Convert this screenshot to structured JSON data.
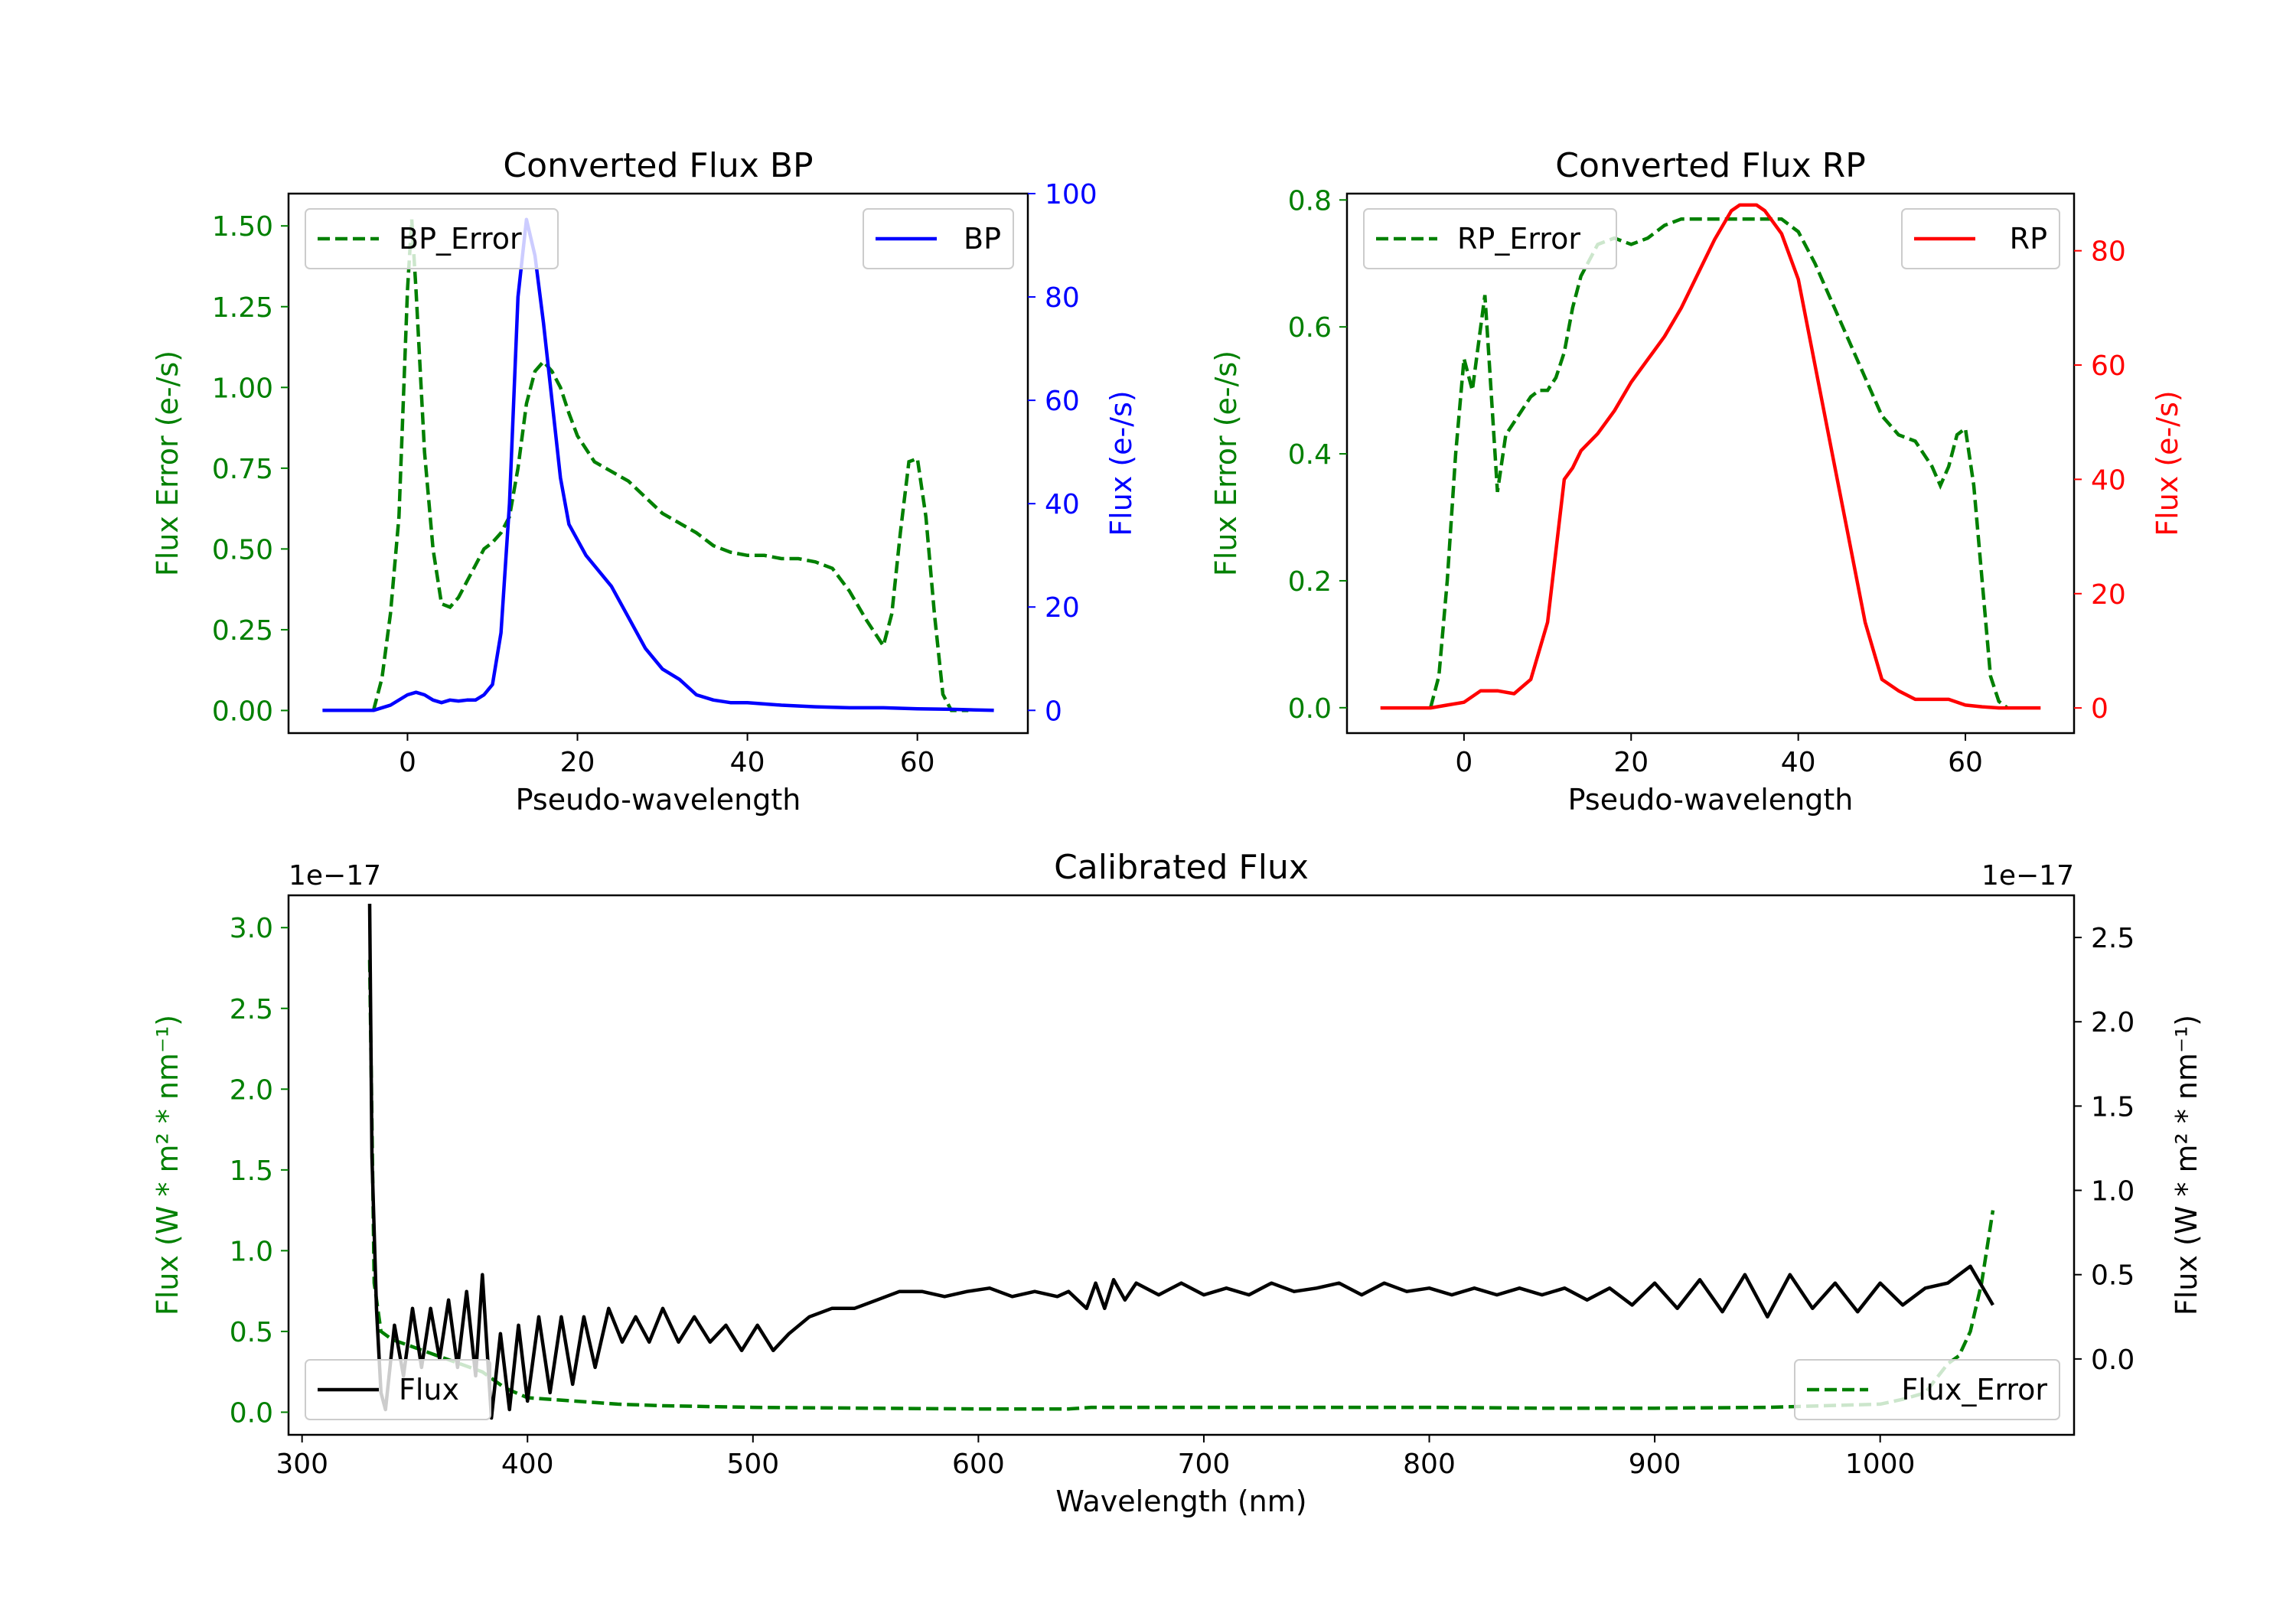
{
  "colors": {
    "green": "#008000",
    "blue": "#0000ff",
    "red": "#ff0000",
    "black": "#000000"
  },
  "chart_data": [
    {
      "type": "line",
      "title": "Converted Flux BP",
      "xlabel": "Pseudo-wavelength",
      "ylabel_left": "Flux Error (e-/s)",
      "ylabel_right": "Flux (e-/s)",
      "xlim": [
        -14,
        73
      ],
      "ylim_left": [
        -0.07,
        1.6
      ],
      "ylim_right": [
        -4.4,
        100
      ],
      "xticks": [
        0,
        20,
        40,
        60
      ],
      "xtick_labels": [
        "0",
        "20",
        "40",
        "60"
      ],
      "yticks_left": [
        0,
        0.25,
        0.5,
        0.75,
        1.0,
        1.25,
        1.5
      ],
      "ytick_labels_left": [
        "0.00",
        "0.25",
        "0.50",
        "0.75",
        "1.00",
        "1.25",
        "1.50"
      ],
      "yticks_right": [
        0,
        20,
        40,
        60,
        80,
        100
      ],
      "ytick_labels_right": [
        "0",
        "20",
        "40",
        "60",
        "80",
        "100"
      ],
      "legend_left": "BP_Error",
      "legend_right": "BP",
      "series_error": {
        "name": "BP_Error",
        "x": [
          -4,
          -3,
          -2,
          -1,
          0,
          0.5,
          1,
          2,
          3,
          4,
          5,
          6,
          7,
          8,
          9,
          10,
          11,
          12,
          13,
          14,
          15,
          16,
          17,
          18,
          19,
          20,
          22,
          24,
          26,
          28,
          30,
          32,
          34,
          36,
          38,
          40,
          42,
          44,
          46,
          48,
          50,
          52,
          54,
          56,
          57,
          58,
          59,
          60,
          61,
          62,
          63,
          64,
          65,
          66
        ],
        "y": [
          0.0,
          0.1,
          0.3,
          0.6,
          1.3,
          1.52,
          1.3,
          0.8,
          0.5,
          0.33,
          0.32,
          0.35,
          0.4,
          0.45,
          0.5,
          0.52,
          0.55,
          0.6,
          0.75,
          0.95,
          1.05,
          1.08,
          1.05,
          1.0,
          0.92,
          0.85,
          0.77,
          0.74,
          0.71,
          0.66,
          0.61,
          0.58,
          0.55,
          0.51,
          0.49,
          0.48,
          0.48,
          0.47,
          0.47,
          0.46,
          0.44,
          0.37,
          0.28,
          0.2,
          0.3,
          0.55,
          0.77,
          0.78,
          0.6,
          0.3,
          0.05,
          0.0,
          0.0,
          0.0
        ]
      },
      "series_flux": {
        "name": "BP",
        "x": [
          -10,
          -6,
          -4,
          -2,
          0,
          1,
          2,
          3,
          4,
          5,
          6,
          7,
          8,
          9,
          10,
          11,
          12,
          13,
          14,
          15,
          16,
          17,
          18,
          19,
          20,
          21,
          22,
          24,
          26,
          28,
          30,
          32,
          34,
          36,
          38,
          40,
          44,
          48,
          52,
          56,
          60,
          64,
          69
        ],
        "y": [
          0,
          0,
          0,
          1,
          3,
          3.5,
          3,
          2,
          1.5,
          2,
          1.8,
          2,
          2,
          3,
          5,
          15,
          40,
          80,
          95,
          88,
          75,
          60,
          45,
          36,
          33,
          30,
          28,
          24,
          18,
          12,
          8,
          6,
          3,
          2,
          1.5,
          1.5,
          1,
          0.7,
          0.5,
          0.5,
          0.3,
          0.2,
          0
        ]
      }
    },
    {
      "type": "line",
      "title": "Converted Flux RP",
      "xlabel": "Pseudo-wavelength",
      "ylabel_left": "Flux Error (e-/s)",
      "ylabel_right": "Flux (e-/s)",
      "xlim": [
        -14,
        73
      ],
      "ylim_left": [
        -0.04,
        0.81
      ],
      "ylim_right": [
        -4.4,
        90
      ],
      "xticks": [
        0,
        20,
        40,
        60
      ],
      "xtick_labels": [
        "0",
        "20",
        "40",
        "60"
      ],
      "yticks_left": [
        0,
        0.2,
        0.4,
        0.6,
        0.8
      ],
      "ytick_labels_left": [
        "0.0",
        "0.2",
        "0.4",
        "0.6",
        "0.8"
      ],
      "yticks_right": [
        0,
        20,
        40,
        60,
        80
      ],
      "ytick_labels_right": [
        "0",
        "20",
        "40",
        "60",
        "80"
      ],
      "legend_left": "RP_Error",
      "legend_right": "RP",
      "series_error": {
        "name": "RP_Error",
        "x": [
          -4,
          -3,
          -2,
          -1,
          0,
          1,
          2,
          2.5,
          3,
          4,
          5,
          6,
          7,
          8,
          9,
          10,
          11,
          12,
          13,
          14,
          16,
          18,
          20,
          22,
          24,
          26,
          28,
          30,
          32,
          34,
          36,
          38,
          40,
          42,
          44,
          46,
          48,
          50,
          52,
          54,
          56,
          57,
          58,
          59,
          60,
          61,
          62,
          63,
          64,
          65
        ],
        "y": [
          0.0,
          0.05,
          0.2,
          0.4,
          0.55,
          0.5,
          0.6,
          0.65,
          0.55,
          0.34,
          0.43,
          0.45,
          0.47,
          0.49,
          0.5,
          0.5,
          0.52,
          0.56,
          0.63,
          0.68,
          0.73,
          0.74,
          0.73,
          0.74,
          0.76,
          0.77,
          0.77,
          0.77,
          0.77,
          0.77,
          0.77,
          0.77,
          0.75,
          0.7,
          0.64,
          0.58,
          0.52,
          0.46,
          0.43,
          0.42,
          0.38,
          0.35,
          0.38,
          0.43,
          0.44,
          0.35,
          0.2,
          0.05,
          0.01,
          0.0
        ]
      },
      "series_flux": {
        "name": "RP",
        "x": [
          -10,
          -4,
          -2,
          0,
          2,
          4,
          6,
          8,
          10,
          12,
          13,
          14,
          16,
          18,
          20,
          22,
          24,
          26,
          28,
          30,
          32,
          33,
          34,
          35,
          36,
          38,
          40,
          42,
          44,
          46,
          48,
          50,
          52,
          54,
          56,
          58,
          60,
          62,
          64,
          69
        ],
        "y": [
          0,
          0,
          0.5,
          1,
          3,
          3,
          2.5,
          5,
          15,
          40,
          42,
          45,
          48,
          52,
          57,
          61,
          65,
          70,
          76,
          82,
          87,
          88,
          88,
          88,
          87,
          83,
          75,
          60,
          45,
          30,
          15,
          5,
          3,
          1.5,
          1.5,
          1.5,
          0.5,
          0.2,
          0,
          0
        ]
      }
    },
    {
      "type": "line",
      "title": "Calibrated Flux",
      "xlabel": "Wavelength (nm)",
      "ylabel_left": "Flux (W * m² * nm⁻¹)",
      "ylabel_right": "Flux (W * m² * nm⁻¹)",
      "offset_left": "1e−17",
      "offset_right": "1e−17",
      "xlim": [
        294,
        1086
      ],
      "ylim_left": [
        -0.14,
        3.2
      ],
      "ylim_right": [
        -0.45,
        2.75
      ],
      "xticks": [
        300,
        400,
        500,
        600,
        700,
        800,
        900,
        1000
      ],
      "xtick_labels": [
        "300",
        "400",
        "500",
        "600",
        "700",
        "800",
        "900",
        "1000"
      ],
      "yticks_left": [
        0,
        0.5,
        1.0,
        1.5,
        2.0,
        2.5,
        3.0
      ],
      "ytick_labels_left": [
        "0.0",
        "0.5",
        "1.0",
        "1.5",
        "2.0",
        "2.5",
        "3.0"
      ],
      "yticks_right": [
        0,
        0.5,
        1.0,
        1.5,
        2.0,
        2.5
      ],
      "ytick_labels_right": [
        "0.0",
        "0.5",
        "1.0",
        "1.5",
        "2.0",
        "2.5"
      ],
      "legend_left": "Flux",
      "legend_right": "Flux_Error",
      "series_error": {
        "name": "Flux_Error",
        "x": [
          330,
          332,
          335,
          340,
          350,
          360,
          370,
          380,
          390,
          400,
          420,
          440,
          460,
          500,
          550,
          600,
          640,
          650,
          700,
          750,
          800,
          850,
          900,
          950,
          1000,
          1010,
          1020,
          1030,
          1035,
          1040,
          1045,
          1050
        ],
        "y": [
          2.8,
          0.8,
          0.5,
          0.45,
          0.4,
          0.35,
          0.3,
          0.25,
          0.15,
          0.09,
          0.07,
          0.05,
          0.04,
          0.03,
          0.025,
          0.02,
          0.02,
          0.03,
          0.03,
          0.03,
          0.03,
          0.025,
          0.025,
          0.03,
          0.05,
          0.08,
          0.12,
          0.3,
          0.35,
          0.5,
          0.8,
          1.25
        ]
      },
      "series_flux": {
        "name": "Flux",
        "x": [
          330,
          331,
          333,
          335,
          337,
          341,
          345,
          349,
          353,
          357,
          361,
          365,
          369,
          373,
          377,
          380,
          384,
          388,
          392,
          396,
          400,
          405,
          410,
          415,
          420,
          425,
          430,
          436,
          442,
          448,
          454,
          460,
          467,
          474,
          481,
          488,
          495,
          502,
          509,
          516,
          525,
          535,
          545,
          555,
          565,
          575,
          585,
          595,
          605,
          615,
          625,
          635,
          640,
          644,
          648,
          652,
          656,
          660,
          665,
          670,
          680,
          690,
          700,
          710,
          720,
          730,
          740,
          750,
          760,
          770,
          780,
          790,
          800,
          810,
          820,
          830,
          840,
          850,
          860,
          870,
          880,
          890,
          900,
          910,
          920,
          930,
          940,
          950,
          960,
          970,
          980,
          990,
          1000,
          1010,
          1020,
          1030,
          1040,
          1050
        ],
        "y": [
          2.7,
          1.2,
          0.3,
          -0.2,
          -0.3,
          0.2,
          -0.1,
          0.3,
          -0.05,
          0.3,
          0.0,
          0.35,
          -0.05,
          0.4,
          -0.1,
          0.5,
          -0.35,
          0.15,
          -0.3,
          0.2,
          -0.25,
          0.25,
          -0.2,
          0.25,
          -0.15,
          0.25,
          -0.05,
          0.3,
          0.1,
          0.25,
          0.1,
          0.3,
          0.1,
          0.25,
          0.1,
          0.2,
          0.05,
          0.2,
          0.05,
          0.15,
          0.25,
          0.3,
          0.3,
          0.35,
          0.4,
          0.4,
          0.37,
          0.4,
          0.42,
          0.37,
          0.4,
          0.37,
          0.4,
          0.35,
          0.3,
          0.45,
          0.3,
          0.47,
          0.35,
          0.45,
          0.38,
          0.45,
          0.38,
          0.42,
          0.38,
          0.45,
          0.4,
          0.42,
          0.45,
          0.38,
          0.45,
          0.4,
          0.42,
          0.38,
          0.42,
          0.38,
          0.42,
          0.38,
          0.42,
          0.35,
          0.42,
          0.32,
          0.45,
          0.3,
          0.47,
          0.28,
          0.5,
          0.25,
          0.5,
          0.3,
          0.45,
          0.28,
          0.45,
          0.32,
          0.42,
          0.45,
          0.55,
          0.32
        ]
      }
    }
  ]
}
